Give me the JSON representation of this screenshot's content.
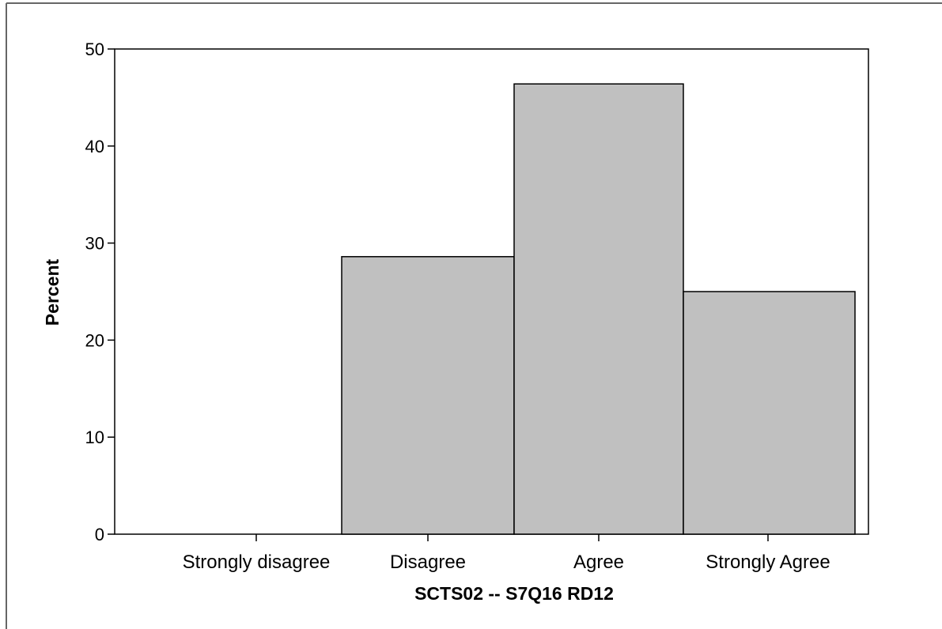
{
  "chart_data": {
    "type": "bar",
    "title": "",
    "xlabel": "SCTS02 -- S7Q16  RD12",
    "ylabel": "Percent",
    "categories": [
      "Strongly disagree",
      "Disagree",
      "Agree",
      "Strongly Agree"
    ],
    "values": [
      0,
      28.6,
      46.4,
      25.0
    ],
    "ylim": [
      0,
      50
    ],
    "yticks": [
      0,
      10,
      20,
      30,
      40,
      50
    ],
    "grid": false,
    "bar_color": "#c0c0c0",
    "bar_outline_color": "#000000"
  }
}
